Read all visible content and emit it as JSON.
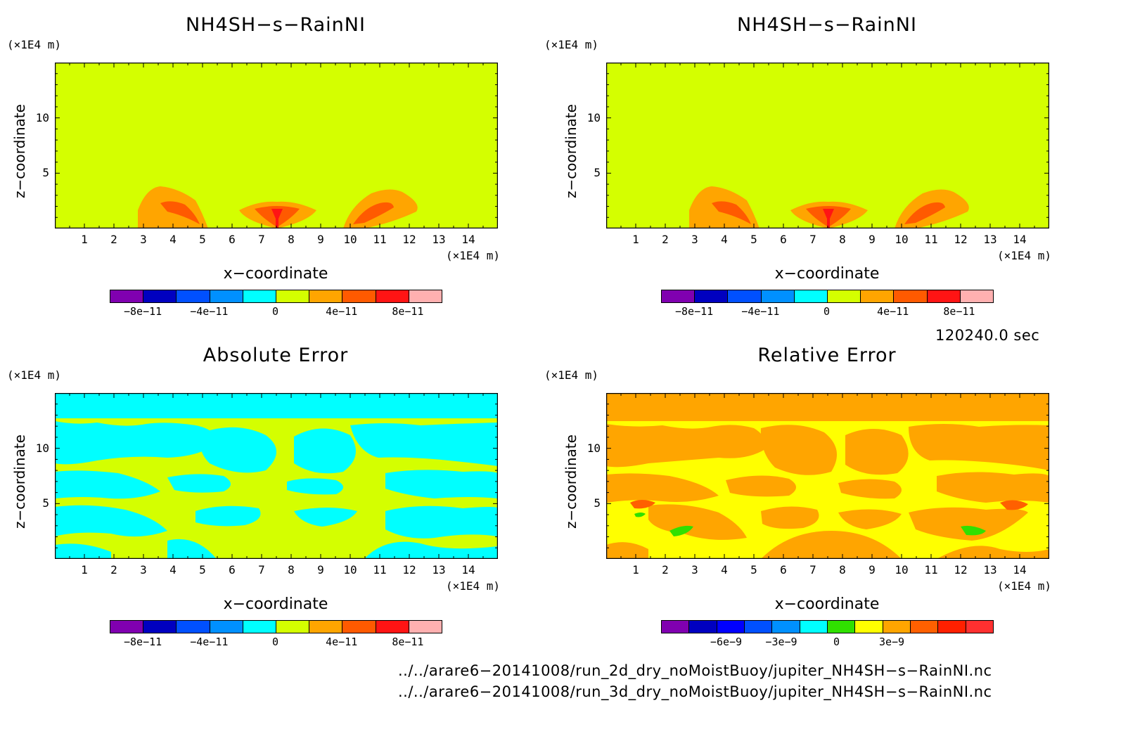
{
  "panels": [
    {
      "title": "NH4SH−s−RainNI",
      "xlabel": "x−coordinate",
      "ylabel": "z−coordinate",
      "x_unit": "(×1E4 m)",
      "y_unit": "(×1E4 m)",
      "field": "model"
    },
    {
      "title": "NH4SH−s−RainNI",
      "xlabel": "x−coordinate",
      "ylabel": "z−coordinate",
      "x_unit": "(×1E4 m)",
      "y_unit": "(×1E4 m)",
      "field": "model"
    },
    {
      "title": "Absolute Error",
      "xlabel": "x−coordinate",
      "ylabel": "z−coordinate",
      "x_unit": "(×1E4 m)",
      "y_unit": "(×1E4 m)",
      "field": "abs_error"
    },
    {
      "title": "Relative Error",
      "xlabel": "x−coordinate",
      "ylabel": "z−coordinate",
      "x_unit": "(×1E4 m)",
      "y_unit": "(×1E4 m)",
      "field": "rel_error"
    }
  ],
  "chart_data": [
    {
      "type": "heatmap",
      "title": "NH4SH−s−RainNI",
      "xlabel": "x−coordinate",
      "ylabel": "z−coordinate",
      "xlim": [
        0,
        15
      ],
      "ylim": [
        0,
        15
      ],
      "x_ticks": [
        "1",
        "2",
        "3",
        "4",
        "5",
        "6",
        "7",
        "8",
        "9",
        "10",
        "11",
        "12",
        "13",
        "14"
      ],
      "y_ticks": [
        "5",
        "10"
      ],
      "colorbar": {
        "colors": [
          "#8000b0",
          "#0000c0",
          "#0050ff",
          "#0090ff",
          "#00ffff",
          "#d4ff00",
          "#ffa500",
          "#ff5a00",
          "#ff1414",
          "#ffb0b0"
        ],
        "tick_labels": [
          "−8e−11",
          "−4e−11",
          "0",
          "4e−11",
          "8e−11"
        ]
      },
      "background_level": 0,
      "features": [
        {
          "x": 4.2,
          "z": 1.8,
          "max": 6e-11
        },
        {
          "x": 7.5,
          "z": 1.4,
          "max": 8e-11
        },
        {
          "x": 11.0,
          "z": 1.8,
          "max": 6e-11
        }
      ]
    },
    {
      "type": "heatmap",
      "title": "NH4SH−s−RainNI",
      "xlabel": "x−coordinate",
      "ylabel": "z−coordinate",
      "xlim": [
        0,
        15
      ],
      "ylim": [
        0,
        15
      ],
      "x_ticks": [
        "1",
        "2",
        "3",
        "4",
        "5",
        "6",
        "7",
        "8",
        "9",
        "10",
        "11",
        "12",
        "13",
        "14"
      ],
      "y_ticks": [
        "5",
        "10"
      ],
      "colorbar": {
        "colors": [
          "#8000b0",
          "#0000c0",
          "#0050ff",
          "#0090ff",
          "#00ffff",
          "#d4ff00",
          "#ffa500",
          "#ff5a00",
          "#ff1414",
          "#ffb0b0"
        ],
        "tick_labels": [
          "−8e−11",
          "−4e−11",
          "0",
          "4e−11",
          "8e−11"
        ]
      },
      "background_level": 0,
      "features": [
        {
          "x": 4.2,
          "z": 1.8,
          "max": 6e-11
        },
        {
          "x": 7.5,
          "z": 1.4,
          "max": 8e-11
        },
        {
          "x": 11.0,
          "z": 1.8,
          "max": 6e-11
        }
      ]
    },
    {
      "type": "heatmap",
      "title": "Absolute Error",
      "xlabel": "x−coordinate",
      "ylabel": "z−coordinate",
      "xlim": [
        0,
        15
      ],
      "ylim": [
        0,
        15
      ],
      "x_ticks": [
        "1",
        "2",
        "3",
        "4",
        "5",
        "6",
        "7",
        "8",
        "9",
        "10",
        "11",
        "12",
        "13",
        "14"
      ],
      "y_ticks": [
        "5",
        "10"
      ],
      "colorbar": {
        "colors": [
          "#8000b0",
          "#0000c0",
          "#0050ff",
          "#0090ff",
          "#00ffff",
          "#d4ff00",
          "#ffa500",
          "#ff5a00",
          "#ff1414",
          "#ffb0b0"
        ],
        "tick_labels": [
          "−8e−11",
          "−4e−11",
          "0",
          "4e−11",
          "8e−11"
        ]
      },
      "levels_present": [
        "#00ffff",
        "#d4ff00"
      ]
    },
    {
      "type": "heatmap",
      "title": "Relative Error",
      "xlabel": "x−coordinate",
      "ylabel": "z−coordinate",
      "xlim": [
        0,
        15
      ],
      "ylim": [
        0,
        15
      ],
      "x_ticks": [
        "1",
        "2",
        "3",
        "4",
        "5",
        "6",
        "7",
        "8",
        "9",
        "10",
        "11",
        "12",
        "13",
        "14"
      ],
      "y_ticks": [
        "5",
        "10"
      ],
      "colorbar": {
        "colors": [
          "#8000b0",
          "#0000c0",
          "#0000ff",
          "#0050ff",
          "#0090ff",
          "#00ffff",
          "#30e000",
          "#ffff00",
          "#ffa500",
          "#ff6000",
          "#ff2000",
          "#ff3030"
        ],
        "tick_labels": [
          "−6e−9",
          "−3e−9",
          "0",
          "3e−9"
        ]
      },
      "levels_present": [
        "#ffff00",
        "#ffa500",
        "#ff6000",
        "#30e000"
      ]
    }
  ],
  "time_label": "120240.0 sec",
  "files": [
    "../../arare6−20141008/run_2d_dry_noMoistBuoy/jupiter_NH4SH−s−RainNI.nc",
    "../../arare6−20141008/run_3d_dry_noMoistBuoy/jupiter_NH4SH−s−RainNI.nc"
  ]
}
